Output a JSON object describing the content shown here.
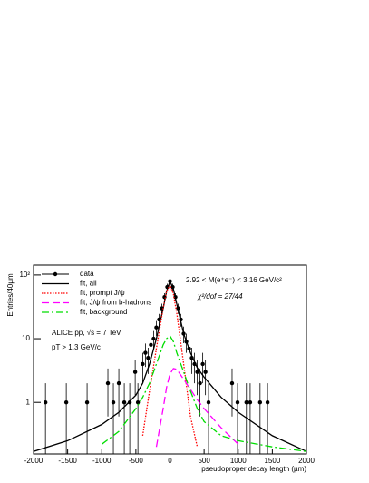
{
  "chart_data": {
    "type": "line",
    "log_y": true,
    "xlabel": "pseudoproper decay length (µm)",
    "ylabel": "Entries/40µm",
    "xlim": [
      -2000,
      2000
    ],
    "ylim": [
      0.155,
      143
    ],
    "xticks": [
      -2000,
      -1500,
      -1000,
      -500,
      0,
      500,
      1000,
      1500,
      2000
    ],
    "yticks": [
      1,
      10,
      {
        "value": 100,
        "label": "10²"
      }
    ],
    "annotations": [
      "2.92 < M(e⁺e⁻) < 3.16 GeV/c²",
      "χ²/dof = 27/44",
      "ALICE pp, √s = 7 TeV",
      "pT > 1.3 GeV/c"
    ],
    "series": [
      {
        "name": "data",
        "color": "#000000",
        "style": "markers",
        "x": [
          -1825,
          -1520,
          -1215,
          -910,
          -830,
          -750,
          -670,
          -590,
          -510,
          -470,
          -400,
          -360,
          -320,
          -280,
          -240,
          -200,
          -160,
          -120,
          -80,
          -40,
          0,
          40,
          80,
          120,
          160,
          200,
          240,
          280,
          320,
          360,
          400,
          440,
          480,
          520,
          565,
          910,
          990,
          1120,
          1175,
          1320,
          1430
        ],
        "values": [
          1,
          1,
          1,
          2,
          1,
          2,
          1,
          1,
          3,
          1,
          4,
          6,
          5,
          8,
          10,
          15,
          20,
          30,
          45,
          65,
          80,
          65,
          45,
          30,
          20,
          12,
          9,
          7,
          5,
          4,
          3,
          2,
          4,
          3,
          1,
          2,
          1,
          1,
          1,
          1,
          1
        ],
        "errors": [
          1,
          1,
          1,
          1.4,
          1,
          1.4,
          1,
          1,
          1.7,
          1,
          2,
          2.4,
          2.2,
          2.8,
          3.2,
          3.9,
          4.5,
          5.5,
          6.7,
          8.1,
          8.9,
          8.1,
          6.7,
          5.5,
          4.5,
          3.5,
          3,
          2.6,
          2.2,
          2,
          1.7,
          1.4,
          2,
          1.7,
          1,
          1.4,
          1,
          1,
          1,
          1,
          1
        ]
      },
      {
        "name": "fit, all",
        "color": "#000000",
        "style": "solid",
        "x": [
          -2000,
          -1500,
          -1000,
          -750,
          -500,
          -400,
          -300,
          -200,
          -100,
          -50,
          0,
          50,
          100,
          200,
          300,
          400,
          500,
          750,
          1000,
          1500,
          2000
        ],
        "values": [
          0.17,
          0.25,
          0.45,
          0.7,
          1.3,
          2,
          4,
          10,
          30,
          55,
          80,
          60,
          35,
          12,
          6,
          3.5,
          2.5,
          1.2,
          0.7,
          0.3,
          0.17
        ]
      },
      {
        "name": "fit, prompt J/ψ",
        "color": "#ff0000",
        "style": "dotted",
        "x": [
          -2000,
          -1500,
          -1000,
          -750,
          -500,
          -400,
          -300,
          -200,
          -100,
          -50,
          0,
          50,
          100,
          200,
          300,
          400,
          500,
          750,
          1000,
          1500,
          2000
        ],
        "values": [
          null,
          null,
          null,
          null,
          null,
          0.3,
          1.5,
          7,
          30,
          55,
          70,
          50,
          25,
          4,
          0.6,
          0.2,
          null,
          null,
          null,
          null,
          null
        ]
      },
      {
        "name": "fit, J/ψ from b-hadrons",
        "color": "#ff00ff",
        "style": "dashed",
        "x": [
          -2000,
          -1500,
          -1000,
          -750,
          -500,
          -400,
          -300,
          -200,
          -100,
          -50,
          0,
          50,
          100,
          200,
          300,
          400,
          500,
          750,
          1000,
          1500,
          2000
        ],
        "values": [
          null,
          null,
          null,
          null,
          null,
          null,
          null,
          0.2,
          0.8,
          1.7,
          2.8,
          3.4,
          3.3,
          2.3,
          1.6,
          1.1,
          0.8,
          0.4,
          0.22,
          null,
          null
        ]
      },
      {
        "name": "fit, background",
        "color": "#00dd00",
        "style": "dashdot",
        "x": [
          -2000,
          -1500,
          -1000,
          -750,
          -500,
          -400,
          -300,
          -200,
          -100,
          -50,
          0,
          50,
          100,
          200,
          300,
          400,
          500,
          750,
          1000,
          1500,
          2000
        ],
        "values": [
          null,
          null,
          0.22,
          0.35,
          0.8,
          1.2,
          2,
          4,
          8,
          10,
          11,
          9,
          6,
          3,
          1.5,
          0.8,
          0.5,
          0.3,
          0.25,
          0.2,
          0.17
        ]
      }
    ]
  }
}
